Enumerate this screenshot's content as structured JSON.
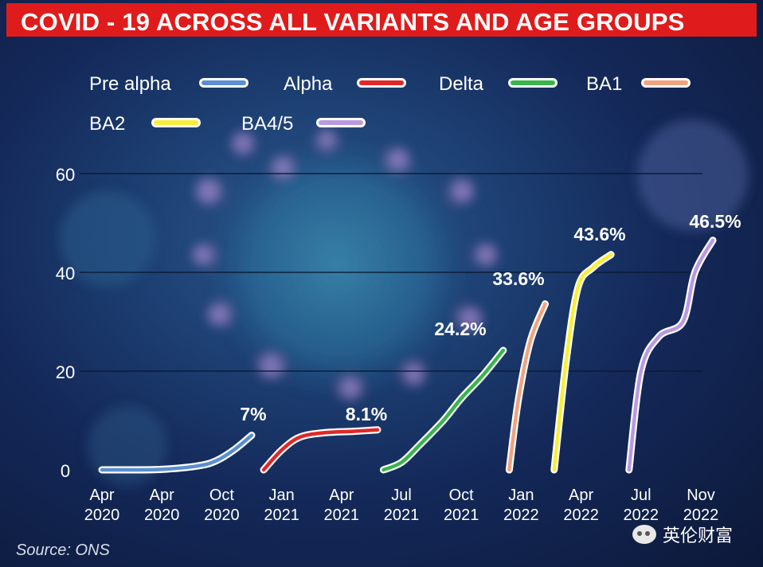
{
  "title": "COVID - 19 ACROSS ALL VARIANTS AND AGE GROUPS",
  "source": "Source: ONS",
  "watermark": "英伦财富",
  "colors": {
    "title_bg": "#e01b1b",
    "Pre alpha": "#5b8fd0",
    "Alpha": "#e0282a",
    "Delta": "#39b54a",
    "BA1": "#f0a37f",
    "BA2": "#f7ee3a",
    "BA4/5": "#b99ae0"
  },
  "chart_data": {
    "type": "line",
    "title": "COVID - 19 ACROSS ALL VARIANTS AND AGE GROUPS",
    "xlabel": "",
    "ylabel": "",
    "ylim": [
      0,
      60
    ],
    "yticks": [
      "0",
      "20",
      "40",
      "60"
    ],
    "xticks": [
      {
        "line1": "Apr",
        "line2": "2020"
      },
      {
        "line1": "Apr",
        "line2": "2020"
      },
      {
        "line1": "Oct",
        "line2": "2020"
      },
      {
        "line1": "Jan",
        "line2": "2021"
      },
      {
        "line1": "Apr",
        "line2": "2021"
      },
      {
        "line1": "Jul",
        "line2": "2021"
      },
      {
        "line1": "Oct",
        "line2": "2021"
      },
      {
        "line1": "Jan",
        "line2": "2022"
      },
      {
        "line1": "Apr",
        "line2": "2022"
      },
      {
        "line1": "Jul",
        "line2": "2022"
      },
      {
        "line1": "Nov",
        "line2": "2022"
      }
    ],
    "grid": true,
    "legend_position": "top-left",
    "series": [
      {
        "name": "Pre alpha",
        "label": "7%",
        "x": [
          0,
          0.4,
          1,
          1.6,
          1.9,
          2.2,
          2.5
        ],
        "y": [
          0,
          0,
          0.1,
          0.8,
          1.8,
          4,
          7
        ]
      },
      {
        "name": "Alpha",
        "label": "",
        "x": [
          2.7,
          3.0,
          3.3,
          3.7,
          4.2,
          4.6
        ],
        "y": [
          0,
          4,
          6.6,
          7.5,
          7.8,
          8.1
        ]
      },
      {
        "name": "Delta",
        "label": "8.1%",
        "x": [
          4.7,
          5.0,
          5.3,
          5.7,
          6.0,
          6.35,
          6.7
        ],
        "y": [
          0,
          1.5,
          5,
          10,
          14.5,
          19,
          24.2
        ]
      },
      {
        "name": "BA1",
        "label": "24.2%",
        "x": [
          6.8,
          6.95,
          7.15,
          7.4
        ],
        "y": [
          0,
          14,
          26,
          33.6
        ]
      },
      {
        "name": "BA2",
        "label": "33.6%",
        "x": [
          7.55,
          7.75,
          7.95,
          8.2,
          8.5
        ],
        "y": [
          0,
          22,
          37,
          41,
          43.6
        ]
      },
      {
        "name": "BA4/5",
        "label": "43.6%",
        "x": [
          8.8,
          9.0,
          9.3,
          9.7,
          9.9,
          10.2
        ],
        "y": [
          0,
          20,
          27,
          30,
          40,
          46.5
        ]
      }
    ],
    "annotations_extra": [
      {
        "text": "46.5%"
      }
    ]
  }
}
